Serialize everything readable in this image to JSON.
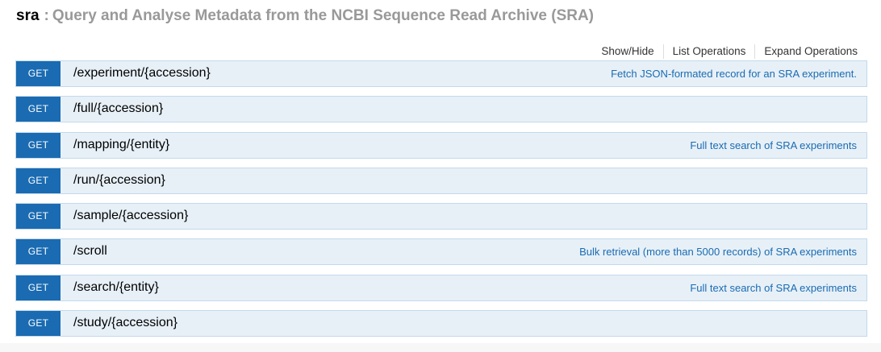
{
  "resource": {
    "name": "sra",
    "separator": ":",
    "description": "Query and Analyse Metadata from the NCBI Sequence Read Archive (SRA)"
  },
  "operations_links": {
    "show_hide": "Show/Hide",
    "list_operations": "List Operations",
    "expand_operations": "Expand Operations"
  },
  "endpoints": [
    {
      "method": "GET",
      "path": "/experiment/{accession}",
      "summary": "Fetch JSON-formated record for an SRA experiment."
    },
    {
      "method": "GET",
      "path": "/full/{accession}",
      "summary": ""
    },
    {
      "method": "GET",
      "path": "/mapping/{entity}",
      "summary": "Full text search of SRA experiments"
    },
    {
      "method": "GET",
      "path": "/run/{accession}",
      "summary": ""
    },
    {
      "method": "GET",
      "path": "/sample/{accession}",
      "summary": ""
    },
    {
      "method": "GET",
      "path": "/scroll",
      "summary": "Bulk retrieval (more than 5000 records) of SRA experiments"
    },
    {
      "method": "GET",
      "path": "/search/{entity}",
      "summary": "Full text search of SRA experiments"
    },
    {
      "method": "GET",
      "path": "/study/{accession}",
      "summary": ""
    }
  ],
  "colors": {
    "get_badge": "#1a6bb2",
    "row_background": "#e7f0f7",
    "row_border": "#c3d9ec",
    "summary_text": "#1a6bb2",
    "heading_muted": "#999999"
  }
}
